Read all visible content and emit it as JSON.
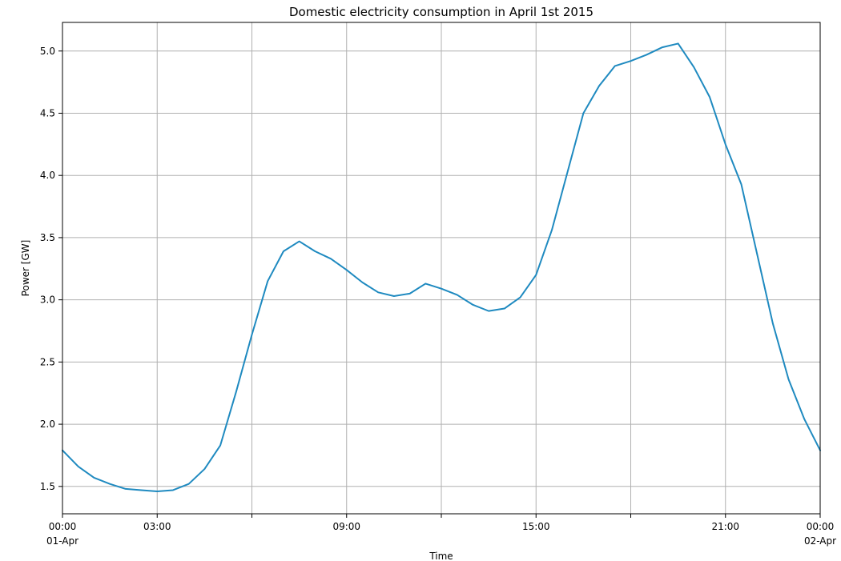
{
  "chart_data": {
    "type": "line",
    "title": "Domestic electricity consumption in April 1st 2015",
    "xlabel": "Time",
    "ylabel": "Power [GW]",
    "grid": true,
    "legend": "none",
    "line_color": "#1f8ac0",
    "grid_color": "#b0b0b0",
    "xlim": [
      "2015-04-01 00:00",
      "2015-04-02 00:00"
    ],
    "ylim": [
      1.28,
      5.23
    ],
    "x_ticks": [
      {
        "value": "2015-04-01 00:00",
        "label": "00:00",
        "sublabel": "01-Apr"
      },
      {
        "value": "2015-04-01 03:00",
        "label": "03:00",
        "sublabel": ""
      },
      {
        "value": "2015-04-01 06:00",
        "label": "",
        "sublabel": ""
      },
      {
        "value": "2015-04-01 09:00",
        "label": "09:00",
        "sublabel": ""
      },
      {
        "value": "2015-04-01 12:00",
        "label": "",
        "sublabel": ""
      },
      {
        "value": "2015-04-01 15:00",
        "label": "15:00",
        "sublabel": ""
      },
      {
        "value": "2015-04-01 18:00",
        "label": "",
        "sublabel": ""
      },
      {
        "value": "2015-04-01 21:00",
        "label": "21:00",
        "sublabel": ""
      },
      {
        "value": "2015-04-02 00:00",
        "label": "00:00",
        "sublabel": "02-Apr"
      }
    ],
    "y_ticks": [
      {
        "value": 1.5,
        "label": "1.5"
      },
      {
        "value": 2.0,
        "label": "2.0"
      },
      {
        "value": 2.5,
        "label": "2.5"
      },
      {
        "value": 3.0,
        "label": "3.0"
      },
      {
        "value": 3.5,
        "label": "3.5"
      },
      {
        "value": 4.0,
        "label": "4.0"
      },
      {
        "value": 4.5,
        "label": "4.5"
      },
      {
        "value": 5.0,
        "label": "5.0"
      }
    ],
    "series": [
      {
        "x": [
          "2015-04-01 00:00",
          "2015-04-01 00:30",
          "2015-04-01 01:00",
          "2015-04-01 01:30",
          "2015-04-01 02:00",
          "2015-04-01 02:30",
          "2015-04-01 03:00",
          "2015-04-01 03:30",
          "2015-04-01 04:00",
          "2015-04-01 04:30",
          "2015-04-01 05:00",
          "2015-04-01 05:30",
          "2015-04-01 06:00",
          "2015-04-01 06:30",
          "2015-04-01 07:00",
          "2015-04-01 07:30",
          "2015-04-01 08:00",
          "2015-04-01 08:30",
          "2015-04-01 09:00",
          "2015-04-01 09:30",
          "2015-04-01 10:00",
          "2015-04-01 10:30",
          "2015-04-01 11:00",
          "2015-04-01 11:30",
          "2015-04-01 12:00",
          "2015-04-01 12:30",
          "2015-04-01 13:00",
          "2015-04-01 13:30",
          "2015-04-01 14:00",
          "2015-04-01 14:30",
          "2015-04-01 15:00",
          "2015-04-01 15:30",
          "2015-04-01 16:00",
          "2015-04-01 16:30",
          "2015-04-01 17:00",
          "2015-04-01 17:30",
          "2015-04-01 18:00",
          "2015-04-01 18:30",
          "2015-04-01 19:00",
          "2015-04-01 19:30",
          "2015-04-01 20:00",
          "2015-04-01 20:30",
          "2015-04-01 21:00",
          "2015-04-01 21:30",
          "2015-04-01 22:00",
          "2015-04-01 22:30",
          "2015-04-01 23:00",
          "2015-04-01 23:30",
          "2015-04-02 00:00"
        ],
        "values": [
          1.79,
          1.66,
          1.57,
          1.52,
          1.48,
          1.47,
          1.46,
          1.47,
          1.52,
          1.64,
          1.83,
          2.26,
          2.72,
          3.15,
          3.39,
          3.47,
          3.39,
          3.33,
          3.24,
          3.14,
          3.06,
          3.03,
          3.05,
          3.13,
          3.09,
          3.04,
          2.96,
          2.91,
          2.93,
          3.02,
          3.2,
          3.56,
          4.03,
          4.5,
          4.72,
          4.88,
          4.92,
          4.97,
          5.03,
          5.06,
          4.87,
          4.63,
          4.25,
          3.93,
          3.37,
          2.81,
          2.36,
          2.04,
          1.79
        ]
      }
    ]
  }
}
